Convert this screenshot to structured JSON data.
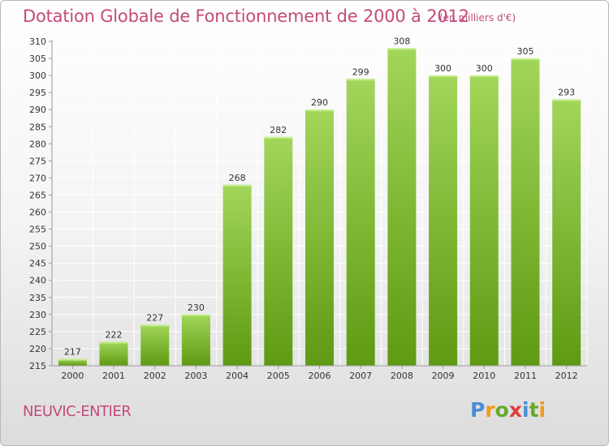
{
  "title": "Dotation Globale de Fonctionnement de 2000 à 2012",
  "subtitle": "(en milliers d'€)",
  "commune": "NEUVIC-ENTIER",
  "logo": {
    "text": "Proxiti",
    "letter_colors": [
      "#4a8fd6",
      "#f29a1a",
      "#66aa2a",
      "#e23a3a",
      "#4a8fd6",
      "#66aa2a",
      "#f29a1a"
    ]
  },
  "colors": {
    "title": "#c44a7a",
    "bar_light": "#a2d65a",
    "bar_dark": "#5e9a12",
    "axis": "#999999",
    "grid": "#ffffff"
  },
  "chart_data": {
    "type": "bar",
    "title": "Dotation Globale de Fonctionnement de 2000 à 2012",
    "xlabel": "",
    "ylabel": "",
    "categories": [
      "2000",
      "2001",
      "2002",
      "2003",
      "2004",
      "2005",
      "2006",
      "2007",
      "2008",
      "2009",
      "2010",
      "2011",
      "2012"
    ],
    "values": [
      217,
      222,
      227,
      230,
      268,
      282,
      290,
      299,
      308,
      300,
      300,
      305,
      293
    ],
    "ylim": [
      215,
      310
    ],
    "yticks": [
      215,
      220,
      225,
      230,
      235,
      240,
      245,
      250,
      255,
      260,
      265,
      270,
      275,
      280,
      285,
      290,
      295,
      300,
      305,
      310
    ],
    "grid": true
  }
}
